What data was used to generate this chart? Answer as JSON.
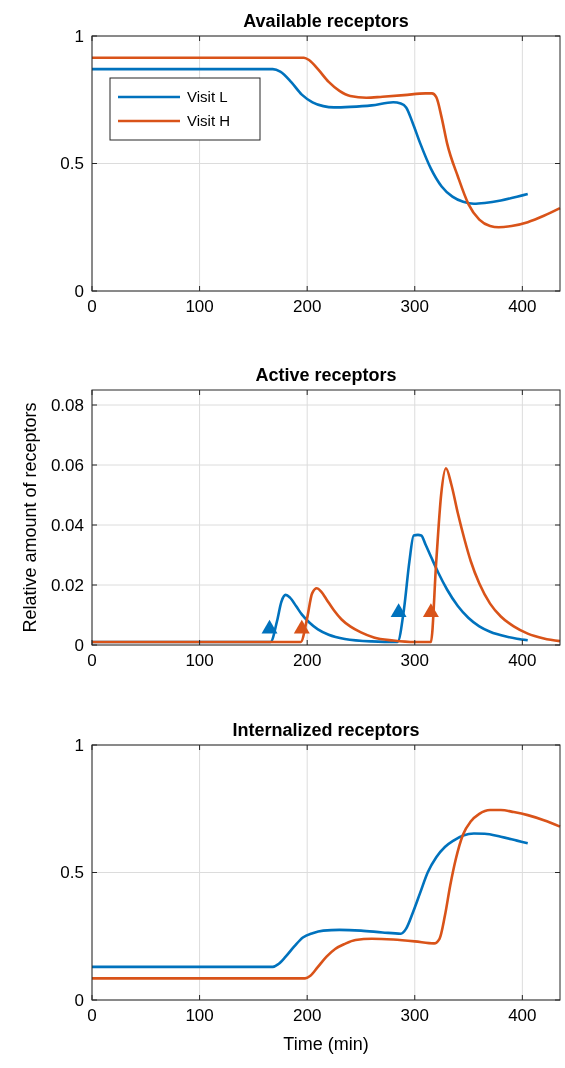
{
  "chart_data": [
    {
      "type": "line",
      "title": "Available receptors",
      "xlim": [
        0,
        435
      ],
      "xticks": [
        0,
        100,
        200,
        300,
        400
      ],
      "ylim": [
        0,
        1
      ],
      "yticks": [
        0,
        0.5,
        1
      ],
      "grid": true,
      "legend": "top left",
      "series": [
        {
          "name": "Visit L",
          "color": "#0072bd",
          "x": [
            0,
            100,
            168,
            175,
            185,
            195,
            205,
            215,
            225,
            240,
            260,
            280,
            287,
            292,
            298,
            305,
            315,
            325,
            335,
            345,
            355,
            365,
            380,
            395,
            405
          ],
          "values": [
            0.87,
            0.87,
            0.87,
            0.86,
            0.82,
            0.77,
            0.74,
            0.725,
            0.72,
            0.722,
            0.728,
            0.74,
            0.735,
            0.72,
            0.66,
            0.58,
            0.48,
            0.41,
            0.37,
            0.35,
            0.342,
            0.345,
            0.355,
            0.37,
            0.38
          ]
        },
        {
          "name": "Visit H",
          "color": "#d95319",
          "x": [
            0,
            100,
            197,
            202,
            210,
            220,
            230,
            240,
            255,
            270,
            290,
            310,
            316,
            320,
            325,
            330,
            340,
            350,
            360,
            370,
            378,
            390,
            405,
            420,
            435
          ],
          "values": [
            0.915,
            0.915,
            0.915,
            0.905,
            0.87,
            0.82,
            0.785,
            0.765,
            0.758,
            0.762,
            0.768,
            0.775,
            0.775,
            0.76,
            0.68,
            0.58,
            0.45,
            0.34,
            0.28,
            0.255,
            0.25,
            0.255,
            0.27,
            0.295,
            0.325
          ]
        }
      ]
    },
    {
      "type": "line",
      "title": "Active receptors",
      "ylabel": "Relative amount of receptors",
      "xlim": [
        0,
        435
      ],
      "xticks": [
        0,
        100,
        200,
        300,
        400
      ],
      "ylim": [
        0,
        0.085
      ],
      "yticks": [
        0,
        0.02,
        0.04,
        0.06,
        0.08
      ],
      "grid": true,
      "series": [
        {
          "color": "#0072bd",
          "x": [
            0,
            100,
            166,
            172,
            176,
            180,
            184,
            190,
            195,
            202,
            210,
            220,
            235,
            260,
            284,
            290,
            295,
            299,
            303,
            306,
            310,
            315,
            322,
            330,
            340,
            350,
            360,
            370,
            385,
            395,
            405
          ],
          "values": [
            0.001,
            null,
            0.001,
            0.008,
            0.0144,
            0.0167,
            0.0158,
            0.0128,
            0.0102,
            0.0075,
            0.0052,
            0.0034,
            0.002,
            0.0012,
            0.001,
            0.012,
            0.0278,
            0.0365,
            0.0367,
            0.0365,
            0.0335,
            0.0295,
            0.024,
            0.0185,
            0.013,
            0.009,
            0.0062,
            0.0044,
            0.0028,
            0.0021,
            0.0016
          ]
        },
        {
          "color": "#d95319",
          "x": [
            0,
            100,
            194,
            200,
            204.6,
            209,
            213,
            218,
            225,
            232,
            240,
            250,
            262,
            280,
            300,
            315,
            320,
            324.5,
            329,
            334,
            340,
            346,
            352,
            360,
            370,
            380,
            392,
            405,
            420,
            435
          ],
          "values": [
            0.001,
            0.001,
            0.001,
            0.009,
            0.0172,
            0.0189,
            0.0178,
            0.0152,
            0.0115,
            0.0085,
            0.0062,
            0.0042,
            0.0025,
            0.0015,
            0.001,
            0.001,
            0.028,
            0.05,
            0.0589,
            0.0535,
            0.044,
            0.0355,
            0.028,
            0.0205,
            0.0138,
            0.0095,
            0.0062,
            0.0038,
            0.0022,
            0.0013
          ]
        },
        {
          "type": "scatter",
          "marker": "triangle",
          "color": "#0072bd",
          "x": [
            165,
            285
          ],
          "values": [
            0.005,
            0.0105
          ]
        },
        {
          "type": "scatter",
          "marker": "triangle",
          "color": "#d95319",
          "x": [
            195,
            315
          ],
          "values": [
            0.005,
            0.0105
          ]
        }
      ]
    },
    {
      "type": "line",
      "title": "Internalized receptors",
      "xlabel": "Time (min)",
      "xlim": [
        0,
        435
      ],
      "xticks": [
        0,
        100,
        200,
        300,
        400
      ],
      "ylim": [
        0,
        1
      ],
      "yticks": [
        0,
        0.5,
        1
      ],
      "grid": true,
      "series": [
        {
          "color": "#0072bd",
          "x": [
            0,
            100,
            168,
            173,
            180,
            188,
            196,
            205,
            215,
            230,
            250,
            270,
            287,
            292,
            298,
            305,
            312,
            320,
            328,
            336,
            345,
            355,
            365,
            380,
            395,
            405
          ],
          "values": [
            0.13,
            0.13,
            0.13,
            0.14,
            0.17,
            0.21,
            0.245,
            0.262,
            0.272,
            0.275,
            0.272,
            0.265,
            0.26,
            0.28,
            0.34,
            0.42,
            0.5,
            0.56,
            0.6,
            0.625,
            0.645,
            0.653,
            0.652,
            0.64,
            0.625,
            0.615
          ]
        },
        {
          "color": "#d95319",
          "x": [
            0,
            100,
            198,
            203,
            210,
            218,
            226,
            235,
            245,
            260,
            280,
            300,
            318,
            323,
            328,
            333,
            338,
            345,
            352,
            360,
            370,
            380,
            392,
            405,
            420,
            435
          ],
          "values": [
            0.085,
            0.085,
            0.085,
            0.095,
            0.13,
            0.17,
            0.2,
            0.22,
            0.235,
            0.24,
            0.237,
            0.23,
            0.222,
            0.24,
            0.33,
            0.45,
            0.55,
            0.65,
            0.7,
            0.73,
            0.745,
            0.745,
            0.737,
            0.725,
            0.705,
            0.68
          ]
        }
      ]
    }
  ]
}
